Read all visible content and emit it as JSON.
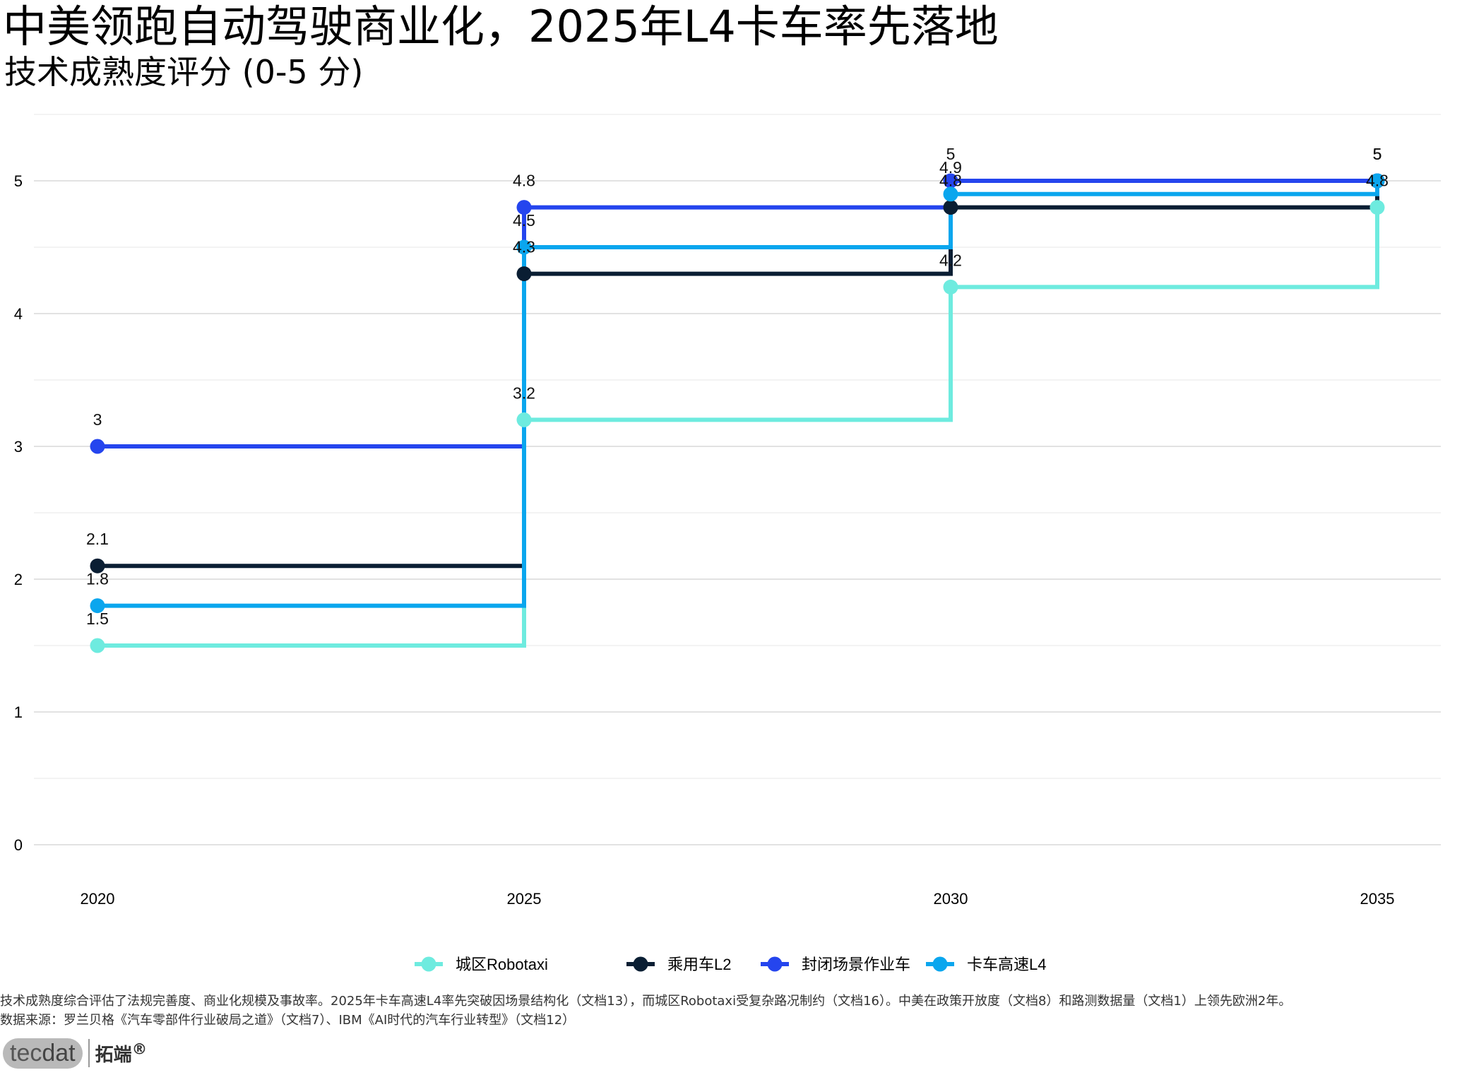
{
  "title": "中美领跑自动驾驶商业化，2025年L4卡车率先落地",
  "subtitle": "技术成熟度评分 (0-5 分)",
  "footnote": {
    "line1": "技术成熟度综合评估了法规完善度、商业化规模及事故率。2025年卡车高速L4率先突破因场景结构化（文档13），而城区Robotaxi受复杂路况制约（文档16）。中美在政策开放度（文档8）和路测数据量（文档1）上领先欧洲2年。",
    "line2": "数据来源：罗兰贝格《汽车零部件行业破局之道》（文档7）、IBM《AI时代的汽车行业转型》（文档12）"
  },
  "logo": {
    "tec": "tec",
    "dat": "dat",
    "cn": "拓端",
    "mark": "®"
  },
  "chart_data": {
    "type": "line",
    "step": "post",
    "x": [
      2020,
      2025,
      2030,
      2035
    ],
    "x_ticks": [
      "2020",
      "2025",
      "2030",
      "2035"
    ],
    "y_ticks": [
      "0",
      "1",
      "2",
      "3",
      "4",
      "5"
    ],
    "ylim": [
      0,
      5.5
    ],
    "grid": true,
    "legend_position": "bottom",
    "series": [
      {
        "name": "城区Robotaxi",
        "color": "#6EEBDF",
        "values": [
          1.5,
          3.2,
          4.2,
          4.8
        ],
        "labels": [
          "1.5",
          "3.2",
          "4.2",
          "4.8"
        ]
      },
      {
        "name": "乘用车L2",
        "color": "#0A1E33",
        "values": [
          2.1,
          4.3,
          4.8,
          5
        ],
        "labels": [
          "2.1",
          "4.3",
          "4.8",
          "5"
        ]
      },
      {
        "name": "封闭场景作业车",
        "color": "#2545EE",
        "values": [
          3,
          4.8,
          5,
          5
        ],
        "labels": [
          "3",
          "4.8",
          "5",
          "5"
        ]
      },
      {
        "name": "卡车高速L4",
        "color": "#0AA6EE",
        "values": [
          1.8,
          4.5,
          4.9,
          5
        ],
        "labels": [
          "1.8",
          "4.5",
          "4.9",
          "5"
        ]
      }
    ]
  }
}
